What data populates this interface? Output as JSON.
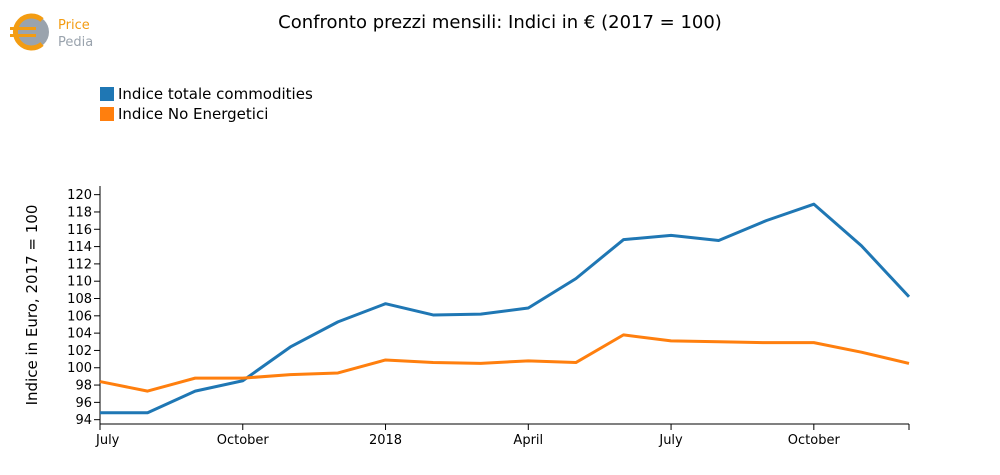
{
  "logo": {
    "line1": "Price",
    "line2": "Pedia"
  },
  "chart_data": {
    "type": "line",
    "title": "Confronto prezzi mensili: Indici in € (2017 = 100)",
    "ylabel": "Indice in Euro, 2017 = 100",
    "xlabel": "",
    "ylim": [
      93.5,
      121
    ],
    "yticks": [
      94,
      96,
      98,
      100,
      102,
      104,
      106,
      108,
      110,
      112,
      114,
      116,
      118,
      120
    ],
    "x": [
      "2017-07",
      "2017-08",
      "2017-09",
      "2017-10",
      "2017-11",
      "2017-12",
      "2018-01",
      "2018-02",
      "2018-03",
      "2018-04",
      "2018-05",
      "2018-06",
      "2018-07",
      "2018-08",
      "2018-09",
      "2018-10",
      "2018-11",
      "2018-12"
    ],
    "xticks": [
      {
        "x": "2017-07",
        "label": "July"
      },
      {
        "x": "2017-10",
        "label": "October"
      },
      {
        "x": "2018-01",
        "label": "2018"
      },
      {
        "x": "2018-04",
        "label": "April"
      },
      {
        "x": "2018-07",
        "label": "July"
      },
      {
        "x": "2018-10",
        "label": "October"
      }
    ],
    "series": [
      {
        "name": "Indice totale commodities",
        "color": "#1f77b4",
        "values": [
          94.8,
          94.8,
          97.3,
          98.5,
          102.4,
          105.3,
          107.4,
          106.1,
          106.2,
          106.9,
          110.3,
          114.8,
          115.3,
          114.7,
          117.0,
          118.9,
          114.1,
          108.2
        ]
      },
      {
        "name": "Indice No Energetici",
        "color": "#ff7f0e",
        "values": [
          98.4,
          97.3,
          98.8,
          98.8,
          99.2,
          99.4,
          100.9,
          100.6,
          100.5,
          100.8,
          100.6,
          103.8,
          103.1,
          103.0,
          102.9,
          102.9,
          101.8,
          100.5
        ]
      }
    ]
  }
}
